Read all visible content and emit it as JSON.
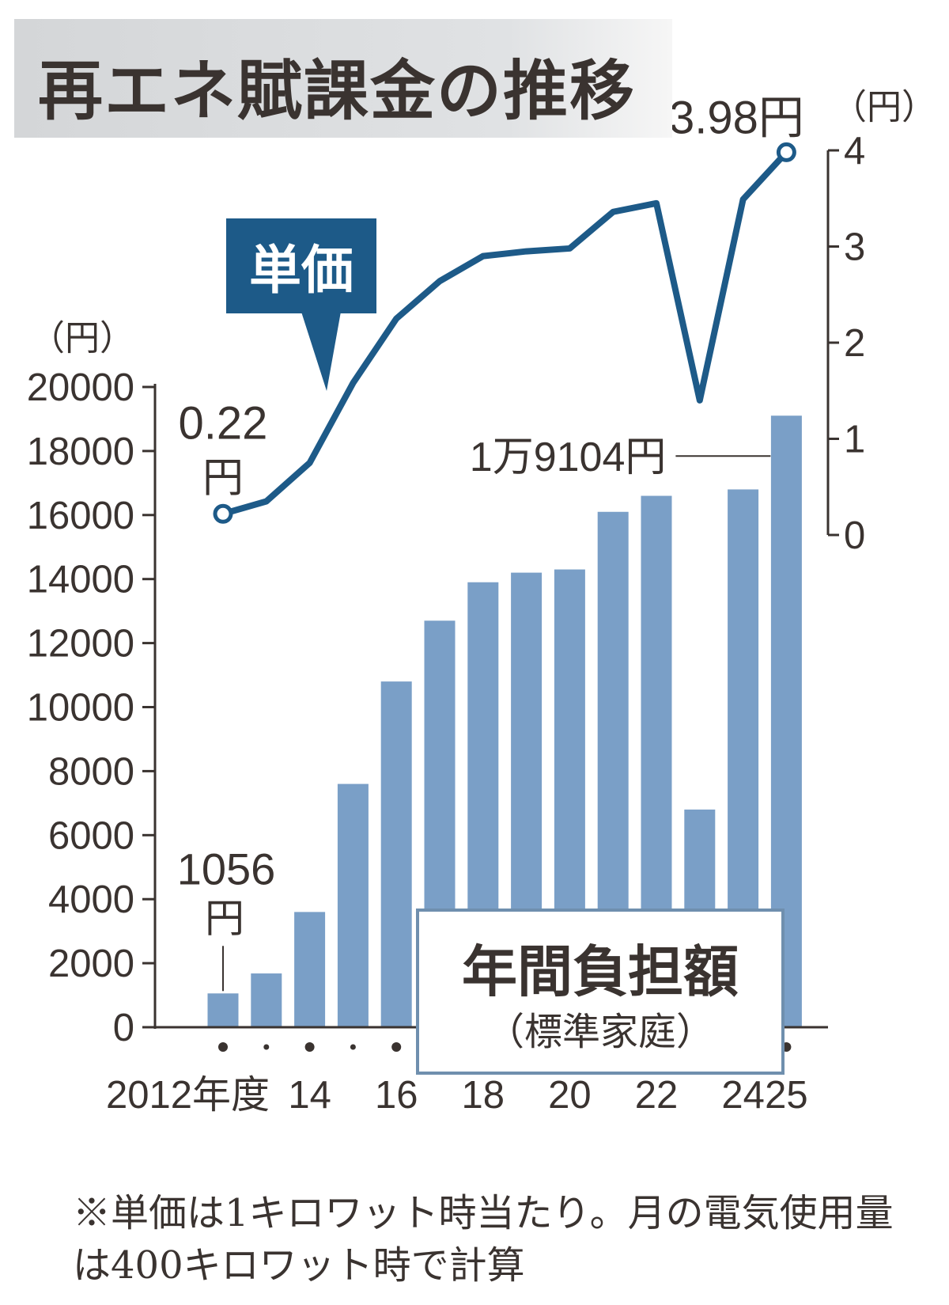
{
  "title": "再エネ賦課金の推移",
  "footnote": "※単価は1キロワット時当たり。月の電気使用量は400キロワット時で計算",
  "colors": {
    "bar": "#7a9fc7",
    "line": "#1d5a88",
    "text": "#3a3330",
    "legend_border": "#6f8fae"
  },
  "chart_data": {
    "type": "bar+line",
    "x": [
      "2012",
      "2013",
      "2014",
      "2015",
      "2016",
      "2017",
      "2018",
      "2019",
      "2020",
      "2021",
      "2022",
      "2023",
      "2024",
      "2025"
    ],
    "x_tick_labels": [
      {
        "x": "2012",
        "label": "2012年度"
      },
      {
        "x": "2014",
        "label": "14"
      },
      {
        "x": "2016",
        "label": "16"
      },
      {
        "x": "2018",
        "label": "18"
      },
      {
        "x": "2020",
        "label": "20"
      },
      {
        "x": "2022",
        "label": "22"
      },
      {
        "x": "2024",
        "label": "24"
      },
      {
        "x": "2025",
        "label": "25"
      }
    ],
    "series": [
      {
        "name": "年間負担額",
        "subtitle": "（標準家庭）",
        "type": "bar",
        "axis": "left",
        "values": [
          1056,
          1680,
          3600,
          7600,
          10800,
          12700,
          13900,
          14200,
          14300,
          16100,
          16600,
          6800,
          16800,
          19104
        ]
      },
      {
        "name": "単価",
        "type": "line",
        "axis": "right",
        "values": [
          0.22,
          0.35,
          0.75,
          1.58,
          2.25,
          2.64,
          2.9,
          2.95,
          2.98,
          3.36,
          3.45,
          1.4,
          3.49,
          3.98
        ]
      }
    ],
    "y_left": {
      "unit": "（円）",
      "ylim": [
        0,
        20000
      ],
      "ticks": [
        0,
        2000,
        4000,
        6000,
        8000,
        10000,
        12000,
        14000,
        16000,
        18000,
        20000
      ]
    },
    "y_right": {
      "unit": "（円）",
      "ylim": [
        0,
        4
      ],
      "ticks": [
        0,
        1,
        2,
        3,
        4
      ]
    },
    "annotations": [
      {
        "text": "0.22",
        "text2": "円",
        "series": "単価",
        "x": "2012"
      },
      {
        "text": "3.98円",
        "series": "単価",
        "x": "2025"
      },
      {
        "text": "1056",
        "text2": "円",
        "series": "年間負担額",
        "x": "2012"
      },
      {
        "text": "1万9104円",
        "series": "年間負担額",
        "x": "2025"
      }
    ]
  }
}
